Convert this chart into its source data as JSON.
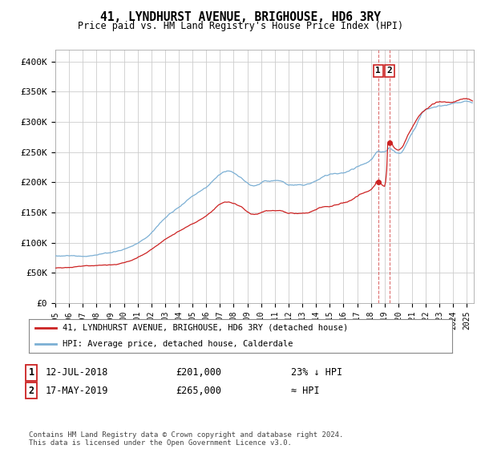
{
  "title": "41, LYNDHURST AVENUE, BRIGHOUSE, HD6 3RY",
  "subtitle": "Price paid vs. HM Land Registry's House Price Index (HPI)",
  "ylim": [
    0,
    420000
  ],
  "yticks": [
    0,
    50000,
    100000,
    150000,
    200000,
    250000,
    300000,
    350000,
    400000
  ],
  "ytick_labels": [
    "£0",
    "£50K",
    "£100K",
    "£150K",
    "£200K",
    "£250K",
    "£300K",
    "£350K",
    "£400K"
  ],
  "hpi_color": "#7bafd4",
  "price_color": "#cc2222",
  "grid_color": "#cccccc",
  "background_color": "#ffffff",
  "sale1_date": 2018.53,
  "sale1_price": 201000,
  "sale2_date": 2019.37,
  "sale2_price": 265000,
  "legend_label_price": "41, LYNDHURST AVENUE, BRIGHOUSE, HD6 3RY (detached house)",
  "legend_label_hpi": "HPI: Average price, detached house, Calderdale",
  "table_row1": [
    "1",
    "12-JUL-2018",
    "£201,000",
    "23% ↓ HPI"
  ],
  "table_row2": [
    "2",
    "17-MAY-2019",
    "£265,000",
    "≈ HPI"
  ],
  "footer": "Contains HM Land Registry data © Crown copyright and database right 2024.\nThis data is licensed under the Open Government Licence v3.0.",
  "xstart": 1995.0,
  "xend": 2025.5
}
